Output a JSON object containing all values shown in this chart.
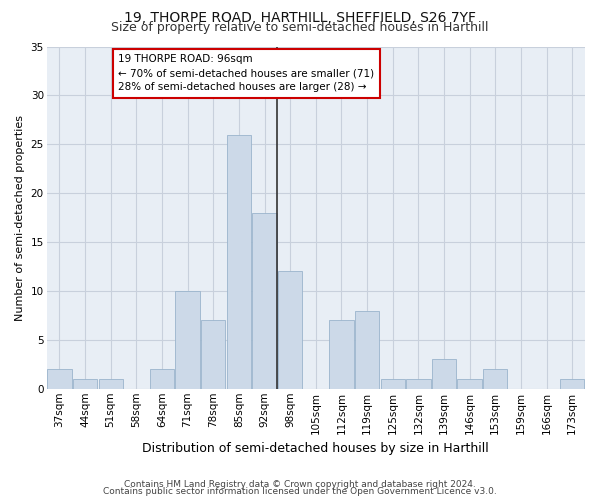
{
  "title_line1": "19, THORPE ROAD, HARTHILL, SHEFFIELD, S26 7YF",
  "title_line2": "Size of property relative to semi-detached houses in Harthill",
  "xlabel": "Distribution of semi-detached houses by size in Harthill",
  "ylabel": "Number of semi-detached properties",
  "footnote1": "Contains HM Land Registry data © Crown copyright and database right 2024.",
  "footnote2": "Contains public sector information licensed under the Open Government Licence v3.0.",
  "bin_labels": [
    "37sqm",
    "44sqm",
    "51sqm",
    "58sqm",
    "64sqm",
    "71sqm",
    "78sqm",
    "85sqm",
    "92sqm",
    "98sqm",
    "105sqm",
    "112sqm",
    "119sqm",
    "125sqm",
    "132sqm",
    "139sqm",
    "146sqm",
    "153sqm",
    "159sqm",
    "166sqm",
    "173sqm"
  ],
  "bar_values": [
    2,
    1,
    1,
    0,
    2,
    10,
    7,
    26,
    18,
    12,
    0,
    7,
    8,
    1,
    1,
    3,
    1,
    2,
    0,
    0,
    1
  ],
  "bar_color": "#ccd9e8",
  "bar_edge_color": "#9ab4cc",
  "vline_x": 8.5,
  "vline_color": "#333333",
  "annotation_text": "19 THORPE ROAD: 96sqm\n← 70% of semi-detached houses are smaller (71)\n28% of semi-detached houses are larger (28) →",
  "annotation_box_facecolor": "#ffffff",
  "annotation_box_edgecolor": "#cc0000",
  "ylim": [
    0,
    35
  ],
  "yticks": [
    0,
    5,
    10,
    15,
    20,
    25,
    30,
    35
  ],
  "grid_color": "#c8d0dc",
  "bg_color": "#e8eef5",
  "fig_bg_color": "#ffffff",
  "title1_fontsize": 10,
  "title2_fontsize": 9,
  "ylabel_fontsize": 8,
  "xlabel_fontsize": 9,
  "tick_fontsize": 7.5,
  "ann_fontsize": 7.5,
  "footnote_fontsize": 6.5
}
